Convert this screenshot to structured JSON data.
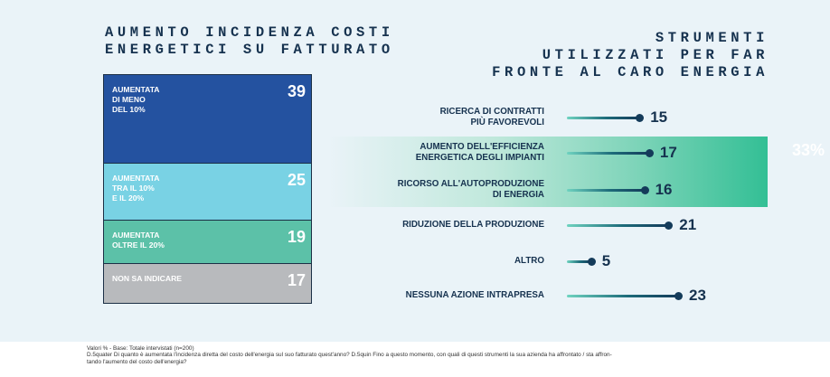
{
  "left_title": "AUMENTO INCIDENZA COSTI\nENERGETICI SU FATTURATO",
  "right_title": "STRUMENTI\nUTILIZZATI PER FAR\nFRONTE AL CARO ENERGIA",
  "highlight_value": "33%",
  "footnote": {
    "line1": "Valori % - Base: Totale intervistati (n=200)",
    "line2": "D.5quater Di quanto è aumentata l'incidenza diretta del costo dell'energia sul suo fatturato quest'anno? D.5quin Fino a questo momento, con quali di questi strumenti la sua azienda ha affrontato / sta affron-",
    "line3": "tando l'aumento del costo dell'energia?"
  },
  "chart_data": [
    {
      "type": "bar",
      "stacked": true,
      "title": "AUMENTO INCIDENZA COSTI ENERGETICI SU FATTURATO",
      "categories": [
        "AUMENTATA\nDI MENO\nDEL 10%",
        "AUMENTATA\nTRA IL 10%\nE IL 20%",
        "AUMENTATA\nOLTRE IL 20%",
        "NON SA INDICARE"
      ],
      "values": [
        39,
        25,
        19,
        17
      ],
      "colors": [
        "#2452a0",
        "#79d2e4",
        "#5cc1a8",
        "#b8babd"
      ]
    },
    {
      "type": "bar",
      "orientation": "horizontal",
      "title": "STRUMENTI UTILIZZATI PER FAR FRONTE AL CARO ENERGIA",
      "categories": [
        "RICERCA DI CONTRATTI\nPIÙ FAVOREVOLI",
        "AUMENTO DELL'EFFICIENZA\nENERGETICA DEGLI IMPIANTI",
        "RICORSO ALL'AUTOPRODUZIONE\nDI ENERGIA",
        "RIDUZIONE DELLA PRODUZIONE",
        "ALTRO",
        "NESSUNA AZIONE INTRAPRESA"
      ],
      "values": [
        15,
        17,
        16,
        21,
        5,
        23
      ],
      "xlim": [
        0,
        23
      ],
      "highlighted": [
        "AUMENTO DELL'EFFICIENZA\nENERGETICA DEGLI IMPIANTI",
        "RICORSO ALL'AUTOPRODUZIONE\nDI ENERGIA"
      ]
    }
  ]
}
